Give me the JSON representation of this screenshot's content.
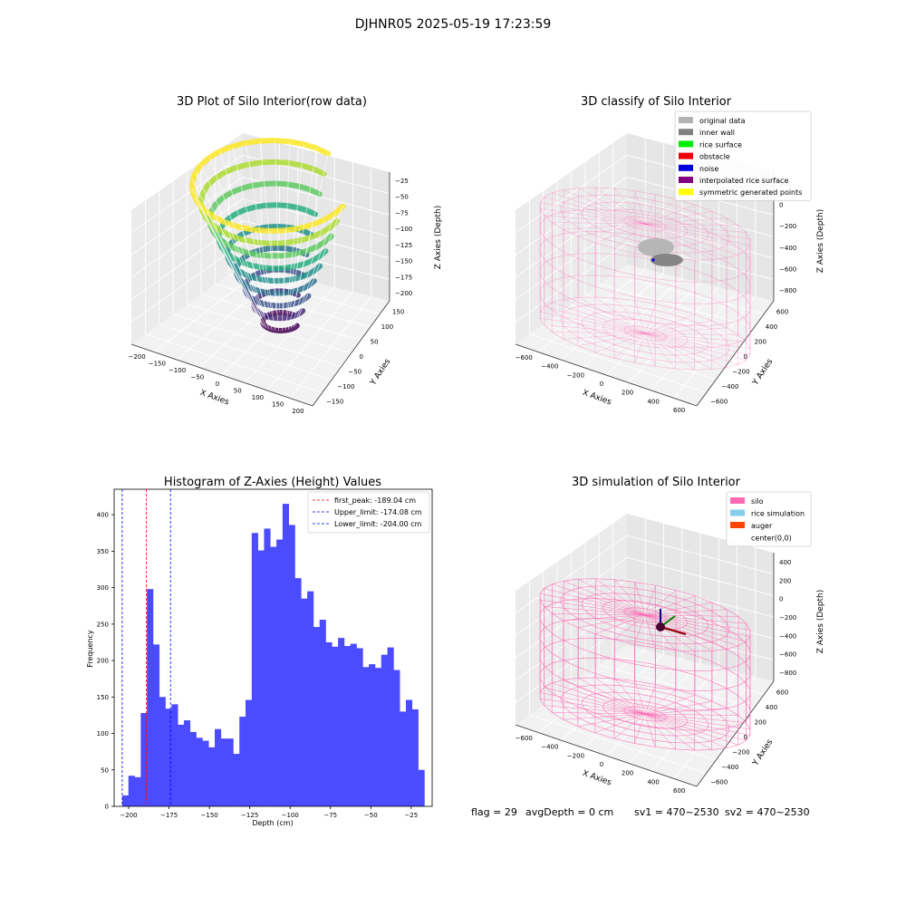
{
  "suptitle": "DJHNR05 2025-05-19 17:23:59",
  "info": {
    "flag": "flag = 29",
    "avg_depth": "avgDepth = 0 cm",
    "sv1": "sv1 = 470~2530",
    "sv2": "sv2 = 470~2530"
  },
  "chart_data": [
    {
      "id": "raw3d",
      "type": "scatter",
      "title": "3D Plot of Silo Interior(row data)",
      "xlabel": "X Axies",
      "ylabel": "Y Axies",
      "zlabel": "Z Axies (Depth)",
      "xticks": [
        -200,
        -150,
        -100,
        -50,
        0,
        50,
        100,
        150,
        200
      ],
      "yticks": [
        -150,
        -100,
        -50,
        0,
        50,
        100,
        150
      ],
      "zticks": [
        -25,
        -50,
        -75,
        -100,
        -125,
        -150,
        -175,
        -200
      ],
      "colormap": "viridis"
    },
    {
      "id": "classify3d",
      "type": "scatter",
      "title": "3D classify of Silo Interior",
      "xlabel": "X Axies",
      "ylabel": "Y Axies",
      "zlabel": "Z Axies (Depth)",
      "xticks": [
        -600,
        -400,
        -200,
        0,
        200,
        400,
        600
      ],
      "yticks": [
        -600,
        -400,
        -200,
        0,
        200,
        400,
        600
      ],
      "zticks": [
        200,
        0,
        -200,
        -400,
        -600,
        -800
      ],
      "legend_position": "top-right",
      "legend": [
        {
          "label": "original data",
          "color": "#b3b3b3"
        },
        {
          "label": "inner wall",
          "color": "#808080"
        },
        {
          "label": "rice surface",
          "color": "#00ee00"
        },
        {
          "label": "obstacle",
          "color": "#ee0000"
        },
        {
          "label": "noise",
          "color": "#0000dd"
        },
        {
          "label": "interpolated rice surface",
          "color": "#800080"
        },
        {
          "label": "symmetric generated points",
          "color": "#ffff00"
        }
      ],
      "silo_color": "#ff69b4"
    },
    {
      "id": "histogram",
      "type": "bar",
      "title": "Histogram of Z-Axies (Height) Values",
      "xlabel": "Depth (cm)",
      "ylabel": "Frequency",
      "xlim": [
        -209,
        -12
      ],
      "ylim": [
        0,
        435
      ],
      "xticks": [
        -200,
        -175,
        -150,
        -125,
        -100,
        -75,
        -50,
        -25
      ],
      "yticks": [
        0,
        50,
        100,
        150,
        200,
        250,
        300,
        350,
        400
      ],
      "bar_color": "#4b4bff",
      "bin_start": -204,
      "bin_width": 3.82,
      "values": [
        15,
        42,
        40,
        128,
        298,
        222,
        150,
        134,
        140,
        112,
        118,
        102,
        94,
        90,
        81,
        106,
        93,
        93,
        72,
        123,
        146,
        375,
        351,
        381,
        356,
        366,
        415,
        386,
        313,
        285,
        295,
        246,
        256,
        225,
        219,
        231,
        220,
        223,
        217,
        191,
        195,
        190,
        208,
        218,
        187,
        130,
        146,
        133,
        50
      ],
      "vlines": [
        {
          "x": -189.04,
          "color": "#ff0000",
          "label": "first_peak: -189.04 cm"
        },
        {
          "x": -174.08,
          "color": "#0000ff",
          "label": "Upper_limit: -174.08 cm"
        },
        {
          "x": -204.0,
          "color": "#0000ff",
          "label": "Lower_limit: -204.00 cm"
        }
      ],
      "legend_position": "top-right"
    },
    {
      "id": "sim3d",
      "type": "scatter",
      "title": "3D simulation of Silo Interior",
      "xlabel": "X Axies",
      "ylabel": "Y Axies",
      "zlabel": "Z Axies (Depth)",
      "xticks": [
        -600,
        -400,
        -200,
        0,
        200,
        400,
        600
      ],
      "yticks": [
        -600,
        -400,
        -200,
        0,
        200,
        400,
        600
      ],
      "zticks": [
        400,
        200,
        0,
        -200,
        -400,
        -600,
        -800
      ],
      "legend_position": "top-right",
      "legend": [
        {
          "label": "silo",
          "color": "#ff69b4"
        },
        {
          "label": "rice simulation",
          "color": "#87ceeb"
        },
        {
          "label": "auger",
          "color": "#ff4500"
        },
        {
          "label": "center(0,0)",
          "color": "#ffffff"
        }
      ],
      "silo_color": "#ff69b4"
    }
  ]
}
